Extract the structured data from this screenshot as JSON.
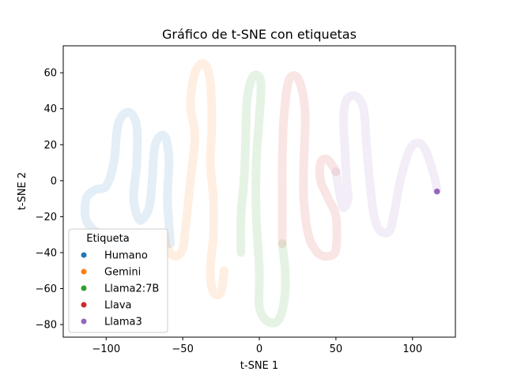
{
  "chart_data": {
    "type": "scatter",
    "title": "Gráfico de t-SNE con etiquetas",
    "xlabel": "t-SNE 1",
    "ylabel": "t-SNE 2",
    "xlim": [
      -128,
      128
    ],
    "ylim": [
      -87,
      75
    ],
    "xticks": [
      -100,
      -50,
      0,
      50,
      100
    ],
    "yticks": [
      -80,
      -60,
      -40,
      -20,
      0,
      20,
      40,
      60
    ],
    "grid": false,
    "legend": {
      "title": "Etiqueta",
      "position": "lower-left"
    },
    "series": [
      {
        "name": "Humano",
        "color": "#1f77b4",
        "opacity": 0.12,
        "points": [
          [
            -58,
            -35
          ],
          [
            -60,
            -10
          ],
          [
            -59,
            12
          ],
          [
            -62,
            25
          ],
          [
            -68,
            20
          ],
          [
            -70,
            0
          ],
          [
            -72,
            -15
          ],
          [
            -78,
            -22
          ],
          [
            -82,
            -10
          ],
          [
            -80,
            10
          ],
          [
            -80,
            30
          ],
          [
            -85,
            38
          ],
          [
            -92,
            32
          ],
          [
            -95,
            10
          ],
          [
            -100,
            -3
          ],
          [
            -107,
            -5
          ],
          [
            -113,
            -10
          ],
          [
            -113,
            -22
          ],
          [
            -105,
            -30
          ],
          [
            -97,
            -38
          ],
          [
            -88,
            -35
          ]
        ]
      },
      {
        "name": "Gemini",
        "color": "#ff7f0e",
        "opacity": 0.12,
        "points": [
          [
            -23,
            -50
          ],
          [
            -25,
            -62
          ],
          [
            -30,
            -62
          ],
          [
            -32,
            -50
          ],
          [
            -30,
            -30
          ],
          [
            -30,
            -10
          ],
          [
            -32,
            10
          ],
          [
            -31,
            30
          ],
          [
            -32,
            55
          ],
          [
            -36,
            65
          ],
          [
            -42,
            60
          ],
          [
            -45,
            42
          ],
          [
            -42,
            25
          ],
          [
            -45,
            0
          ],
          [
            -48,
            -25
          ],
          [
            -50,
            -38
          ],
          [
            -55,
            -42
          ],
          [
            -60,
            -38
          ],
          [
            -62,
            -30
          ]
        ]
      },
      {
        "name": "Llama2:7B",
        "color": "#2ca02c",
        "opacity": 0.12,
        "points": [
          [
            -12,
            -40
          ],
          [
            -12,
            -20
          ],
          [
            -10,
            0
          ],
          [
            -9,
            20
          ],
          [
            -8,
            45
          ],
          [
            -4,
            58
          ],
          [
            1,
            55
          ],
          [
            0,
            35
          ],
          [
            -2,
            10
          ],
          [
            -2,
            -20
          ],
          [
            0,
            -50
          ],
          [
            0,
            -70
          ],
          [
            5,
            -78
          ],
          [
            12,
            -78
          ],
          [
            16,
            -68
          ],
          [
            17,
            -52
          ],
          [
            15,
            -35
          ]
        ]
      },
      {
        "name": "Llava",
        "color": "#d62728",
        "opacity": 0.12,
        "points": [
          [
            15,
            -35
          ],
          [
            15,
            -10
          ],
          [
            15,
            10
          ],
          [
            16,
            35
          ],
          [
            19,
            55
          ],
          [
            24,
            58
          ],
          [
            28,
            50
          ],
          [
            30,
            35
          ],
          [
            29,
            10
          ],
          [
            29,
            -10
          ],
          [
            32,
            -30
          ],
          [
            38,
            -40
          ],
          [
            45,
            -42
          ],
          [
            50,
            -38
          ],
          [
            50,
            -20
          ],
          [
            45,
            -10
          ],
          [
            40,
            0
          ],
          [
            40,
            10
          ],
          [
            44,
            12
          ],
          [
            48,
            8
          ],
          [
            50,
            5
          ]
        ]
      },
      {
        "name": "Llama3",
        "color": "#9467bd",
        "opacity": 0.12,
        "points": [
          [
            50,
            5
          ],
          [
            53,
            -10
          ],
          [
            55,
            -15
          ],
          [
            58,
            -10
          ],
          [
            57,
            0
          ],
          [
            56,
            15
          ],
          [
            55,
            35
          ],
          [
            57,
            45
          ],
          [
            63,
            47
          ],
          [
            68,
            40
          ],
          [
            70,
            20
          ],
          [
            72,
            0
          ],
          [
            75,
            -20
          ],
          [
            79,
            -28
          ],
          [
            85,
            -28
          ],
          [
            88,
            -18
          ],
          [
            92,
            0
          ],
          [
            98,
            17
          ],
          [
            104,
            21
          ],
          [
            109,
            16
          ],
          [
            114,
            3
          ],
          [
            116,
            -5
          ]
        ]
      }
    ],
    "highlight_point": {
      "series": "Llama3",
      "x": 116,
      "y": -6,
      "color": "#9467bd"
    }
  }
}
